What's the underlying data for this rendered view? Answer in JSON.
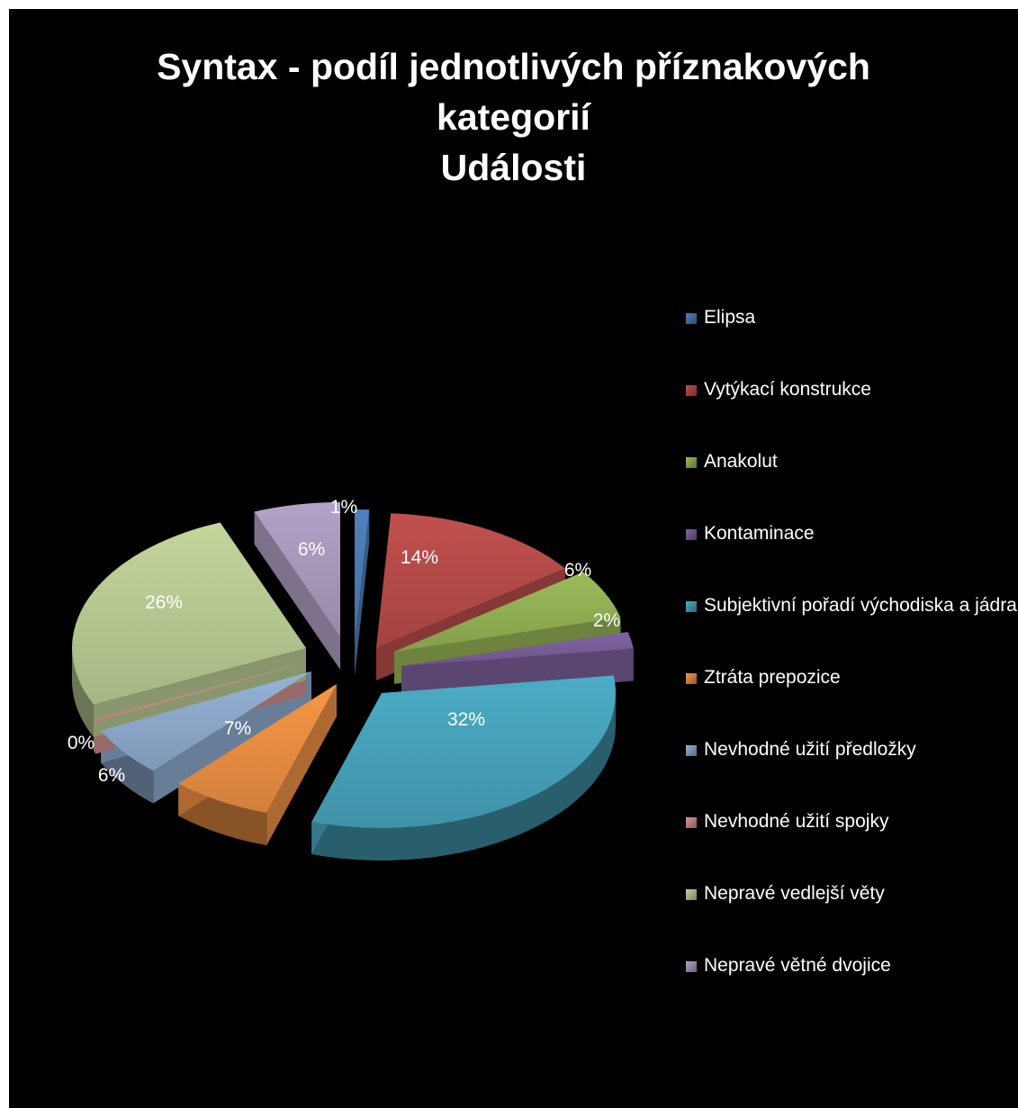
{
  "chart_data": {
    "type": "pie",
    "title": [
      "Syntax - podíl jednotlivých příznakových",
      "kategorií",
      "Události"
    ],
    "slices": [
      {
        "label": "Elipsa",
        "value": 1,
        "data_label": "1%",
        "color": "#4F81BD"
      },
      {
        "label": "Vytýkací konstrukce",
        "value": 14,
        "data_label": "14%",
        "color": "#C0504D"
      },
      {
        "label": "Anakolut",
        "value": 6,
        "data_label": "6%",
        "color": "#9BBB59"
      },
      {
        "label": "Kontaminace",
        "value": 2,
        "data_label": "2%",
        "color": "#8064A2"
      },
      {
        "label": "Subjektivní pořadí východiska a jádra",
        "value": 32,
        "data_label": "32%",
        "color": "#4BACC6"
      },
      {
        "label": "Ztráta prepozice",
        "value": 7,
        "data_label": "7%",
        "color": "#F79646"
      },
      {
        "label": "Nevhodné užití předložky",
        "value": 6,
        "data_label": "6%",
        "color": "#95B3D7"
      },
      {
        "label": "Nevhodné užití spojky",
        "value": 0.3,
        "data_label": "0%",
        "color": "#D99694"
      },
      {
        "label": "Nepravé vedlejší věty",
        "value": 26,
        "data_label": "26%",
        "color": "#C3D69B"
      },
      {
        "label": "Nepravé větné dvojice",
        "value": 6,
        "data_label": "6%",
        "color": "#B3A2C7"
      }
    ],
    "legend_position": "right"
  }
}
